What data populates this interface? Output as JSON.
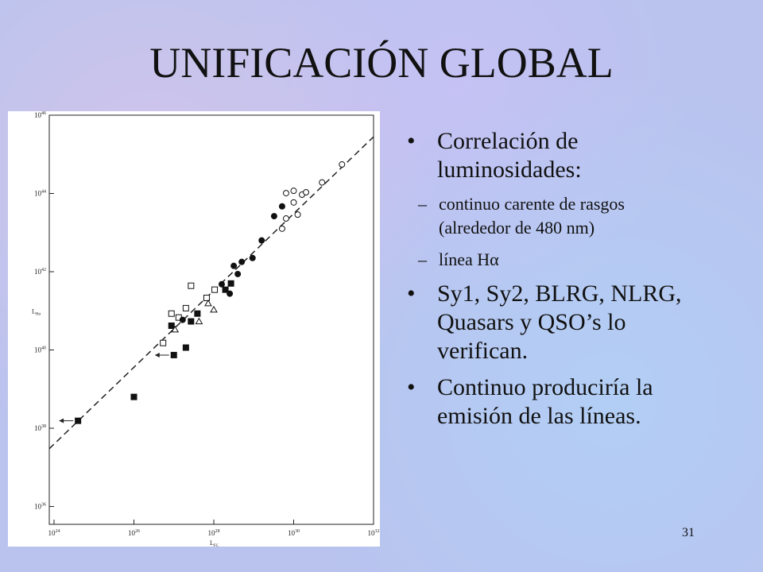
{
  "title": "UNIFICACIÓN GLOBAL",
  "bullets": [
    {
      "text": "Correlación de luminosidades:",
      "sub": [
        "continuo carente de rasgos (alrededor de 480 nm)",
        "línea Hα"
      ]
    },
    {
      "text": "Sy1, Sy2, BLRG, NLRG, Quasars y QSO’s lo verifican."
    },
    {
      "text": "Continuo produciría la emisión de las líneas."
    }
  ],
  "page_number": "31",
  "chart_data": {
    "type": "scatter",
    "xlog": true,
    "ylog": true,
    "xlabel": "L",
    "xlabel_sub": "FC",
    "ylabel": "L",
    "ylabel_sub": "Hα",
    "xlim": [
      7.6e+23,
      1e+32
    ],
    "ylim": [
      3.5e+35,
      1e+46
    ],
    "xticks": [
      {
        "value": 1e+24,
        "label": "10",
        "sup": "24"
      },
      {
        "value": 1e+26,
        "label": "10",
        "sup": "26"
      },
      {
        "value": 1e+28,
        "label": "10",
        "sup": "28"
      },
      {
        "value": 1e+30,
        "label": "10",
        "sup": "30"
      },
      {
        "value": 1e+32,
        "label": "10",
        "sup": "32"
      }
    ],
    "yticks": [
      {
        "value": 1e+36,
        "label": "10",
        "sup": "36"
      },
      {
        "value": 1e+38,
        "label": "10",
        "sup": "38"
      },
      {
        "value": 1e+40,
        "label": "10",
        "sup": "40"
      },
      {
        "value": 1e+42,
        "label": "10",
        "sup": "42"
      },
      {
        "value": 1e+44,
        "label": "10",
        "sup": "44"
      },
      {
        "value": 1e+46,
        "label": "10",
        "sup": "46"
      }
    ],
    "fit_line": {
      "x": [
        7.6e+23,
        1e+32
      ],
      "y": [
        3e+37,
        2.8e+45
      ],
      "dashed": true
    },
    "series": [
      {
        "marker": "square",
        "filled": true,
        "color": "#111111",
        "x": [
          3.98e+24,
          1e+26,
          1e+27,
          2e+27,
          8.71e+26,
          2.69e+27,
          3.89e+27,
          2.69e+28,
          1.95e+28
        ],
        "values": [
          1.55e+38,
          6.31e+38,
          7.41e+39,
          1.15e+40,
          4.17e+40,
          5.37e+40,
          8.51e+40,
          5.01e+41,
          3.47e+41
        ]
      },
      {
        "marker": "square",
        "filled": false,
        "color": "#111111",
        "x": [
          5.37e+26,
          8.71e+26,
          2.69e+27,
          6.61e+27,
          1.05e+28,
          2e+27,
          1.32e+27
        ],
        "values": [
          1.51e+40,
          8.51e+40,
          4.37e+41,
          2.14e+41,
          3.47e+41,
          1.17e+41,
          6.76e+40
        ]
      },
      {
        "marker": "circle",
        "filled": true,
        "color": "#111111",
        "x": [
          1.66e+27,
          1.58e+28,
          3.16e+28,
          5.01e+28,
          9.33e+28,
          1.58e+29,
          3.24e+29,
          5.13e+29,
          3.98e+28,
          2.51e+28
        ],
        "values": [
          5.89e+40,
          4.79e+41,
          1.41e+42,
          1.78e+42,
          2.24e+42,
          6.31e+42,
          2.63e+43,
          4.68e+43,
          8.71e+41,
          2.75e+41
        ]
      },
      {
        "marker": "circle",
        "filled": false,
        "color": "#111111",
        "x": [
          5.13e+29,
          6.46e+29,
          1e+30,
          1.62e+30,
          2.04e+30,
          1e+30,
          5.13e+30,
          1.62e+31,
          6.46e+29,
          1.26e+30
        ],
        "values": [
          1.26e+43,
          2.29e+43,
          5.89e+43,
          9.33e+43,
          1.07e+44,
          1.17e+44,
          1.91e+44,
          5.5e+44,
          1.02e+44,
          2.88e+43
        ]
      },
      {
        "marker": "triangle",
        "filled": false,
        "color": "#111111",
        "x": [
          4.27e+27,
          1e+28,
          7.24e+27,
          1.07e+27
        ],
        "values": [
          5.37e+40,
          1.07e+41,
          1.55e+41,
          3.31e+40
        ]
      }
    ]
  }
}
